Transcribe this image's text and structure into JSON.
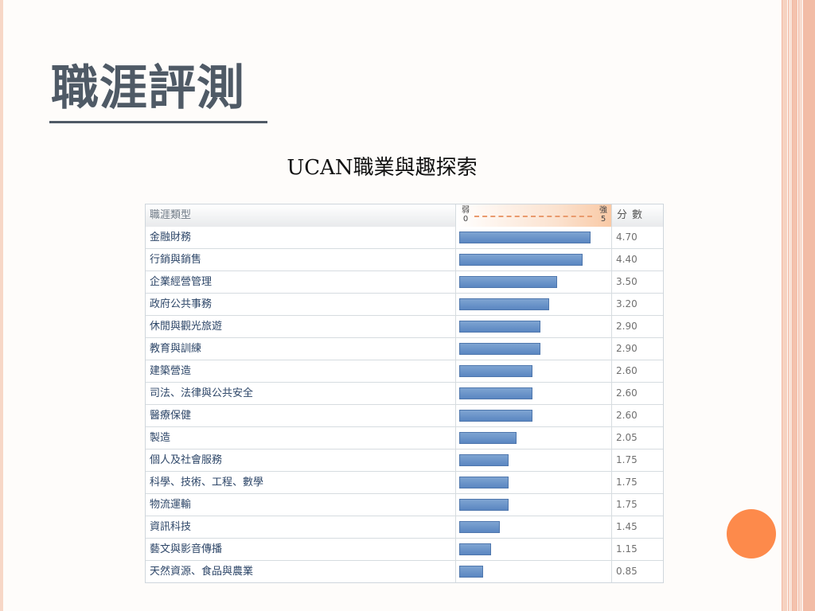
{
  "slide": {
    "title": "職涯評測",
    "chart_title": "UCAN職業與趣探索"
  },
  "table": {
    "header": {
      "category": "職涯類型",
      "scale_weak": "弱",
      "scale_weak_value": "0",
      "scale_strong": "強",
      "scale_strong_value": "5",
      "score": "分數"
    }
  },
  "colors": {
    "bar": "#5a86c1",
    "accent_circle": "#fd8a4b",
    "title_text": "#4f5a66",
    "frame": "#f2bca6"
  },
  "chart_data": {
    "type": "bar",
    "title": "UCAN職業與趣探索",
    "xlim": [
      0,
      5
    ],
    "categories": [
      "金融財務",
      "行銷與銷售",
      "企業經營管理",
      "政府公共事務",
      "休閒與觀光旅遊",
      "教育與訓練",
      "建築營造",
      "司法、法律與公共安全",
      "醫療保健",
      "製造",
      "個人及社會服務",
      "科學、技術、工程、數學",
      "物流運輸",
      "資訊科技",
      "藝文與影音傳播",
      "天然資源、食品與農業"
    ],
    "values": [
      4.7,
      4.4,
      3.5,
      3.2,
      2.9,
      2.9,
      2.6,
      2.6,
      2.6,
      2.05,
      1.75,
      1.75,
      1.75,
      1.45,
      1.15,
      0.85
    ],
    "value_labels": [
      "4.70",
      "4.40",
      "3.50",
      "3.20",
      "2.90",
      "2.90",
      "2.60",
      "2.60",
      "2.60",
      "2.05",
      "1.75",
      "1.75",
      "1.75",
      "1.45",
      "1.15",
      "0.85"
    ]
  }
}
